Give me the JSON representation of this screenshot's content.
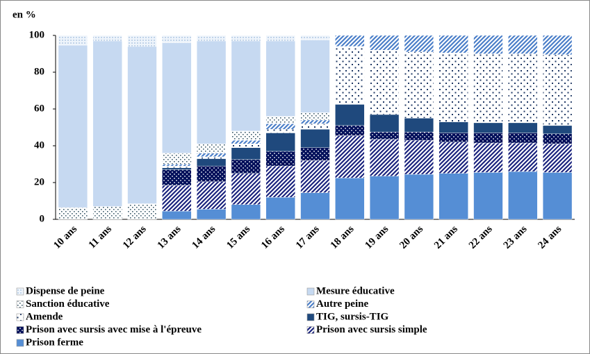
{
  "chart_data": {
    "type": "stacked-bar",
    "y_label": "en %",
    "categories": [
      "10 ans",
      "11 ans",
      "12 ans",
      "13 ans",
      "14 ans",
      "15 ans",
      "16 ans",
      "17 ans",
      "18 ans",
      "19 ans",
      "20 ans",
      "21 ans",
      "22 ans",
      "23 ans",
      "24 ans"
    ],
    "ylim": [
      0,
      100
    ],
    "yticks": [
      0,
      20,
      40,
      60,
      80,
      100
    ],
    "series": [
      {
        "name": "Prison ferme",
        "color": "#558ed5",
        "pattern": "solid",
        "values": [
          0,
          0,
          0,
          4.5,
          5.5,
          8,
          12,
          14.5,
          22.5,
          23.5,
          24.5,
          25,
          25.5,
          26,
          25.5
        ]
      },
      {
        "name": "Prison avec sursis simple",
        "color": "#1a237e",
        "pattern": "stripes",
        "values": [
          0,
          0,
          0,
          14,
          15,
          17,
          17,
          17.5,
          23,
          20,
          18.5,
          17,
          16,
          15.5,
          15.5
        ]
      },
      {
        "name": "Prison avec sursis avec mise à l'épreuve",
        "color": "#000f5a",
        "pattern": "dots-inverse",
        "values": [
          0,
          0,
          0,
          8.5,
          8.5,
          7.5,
          8,
          7,
          5.5,
          4,
          4.5,
          5,
          5.5,
          5.5,
          5.5
        ]
      },
      {
        "name": "TIG, sursis-TIG",
        "color": "#1f497d",
        "pattern": "solid",
        "values": [
          0,
          0,
          0,
          1,
          4,
          6.5,
          10,
          10,
          11.5,
          9.5,
          7.5,
          6,
          5.5,
          5.5,
          4.5
        ]
      },
      {
        "name": "Amende",
        "color": "#1f3864",
        "pattern": "squares",
        "values": [
          0,
          0,
          0,
          1,
          1,
          2,
          2,
          3,
          31.5,
          35,
          36,
          37.5,
          37.5,
          37.5,
          38.5
        ]
      },
      {
        "name": "Autre peine",
        "color": "#4a7ec8",
        "pattern": "stripes",
        "values": [
          0,
          0,
          0,
          1,
          2,
          2,
          3,
          2,
          6,
          8,
          9,
          9.5,
          10,
          10,
          10.5
        ]
      },
      {
        "name": "Sanction éducative",
        "color": "#3c5a6a",
        "pattern": "dots",
        "values": [
          6.4,
          7,
          8.5,
          6,
          5,
          5,
          4,
          4,
          0,
          0,
          0,
          0,
          0,
          0,
          0
        ]
      },
      {
        "name": "Mesure éducative",
        "color": "#c6d9f1",
        "pattern": "solid",
        "values": [
          88.3,
          90,
          85.5,
          60,
          56,
          49,
          41,
          39.5,
          0,
          0,
          0,
          0,
          0,
          0,
          0
        ]
      },
      {
        "name": "Dispense de peine",
        "color": "#4f81bd",
        "pattern": "fine-dots",
        "values": [
          5.3,
          3,
          6,
          4,
          3,
          3,
          3,
          2.5,
          0,
          0,
          0,
          0,
          0,
          0,
          0
        ]
      }
    ]
  }
}
